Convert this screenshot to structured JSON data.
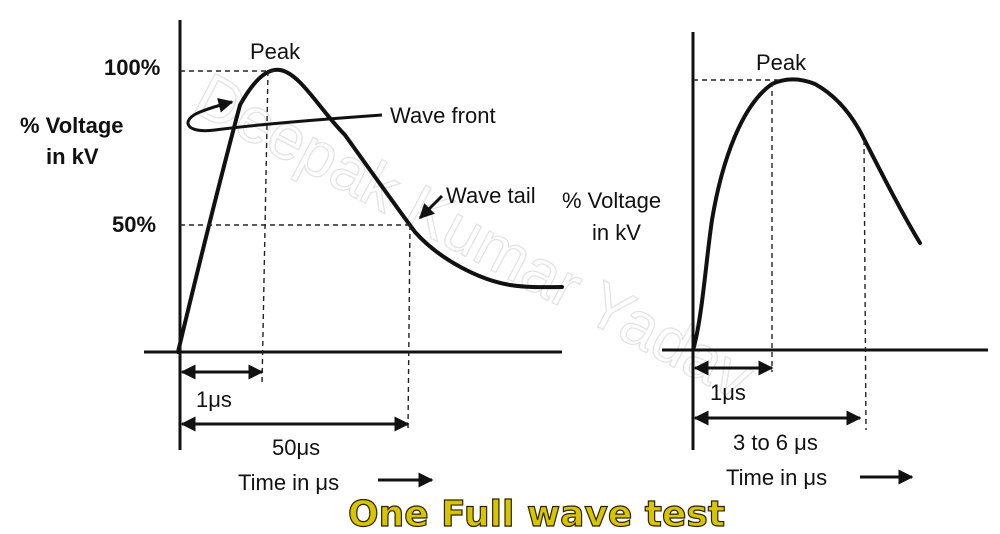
{
  "left_diagram": {
    "y_axis_label_line1": "% Voltage",
    "y_axis_label_line2": "in kV",
    "label_100": "100%",
    "label_50": "50%",
    "peak_label": "Peak",
    "wave_front_label": "Wave front",
    "wave_tail_label": "Wave tail",
    "front_time_label": "1μs",
    "tail_time_label": "50μs",
    "x_axis_label": "Time in μs"
  },
  "right_diagram": {
    "y_axis_label_line1": "% Voltage",
    "y_axis_label_line2": "in kV",
    "peak_label": "Peak",
    "front_time_label": "1μs",
    "tail_time_label": "3 to 6 μs",
    "x_axis_label": "Time in μs"
  },
  "caption": "One Full wave test",
  "watermark": "Deepak Kumar Yadav"
}
